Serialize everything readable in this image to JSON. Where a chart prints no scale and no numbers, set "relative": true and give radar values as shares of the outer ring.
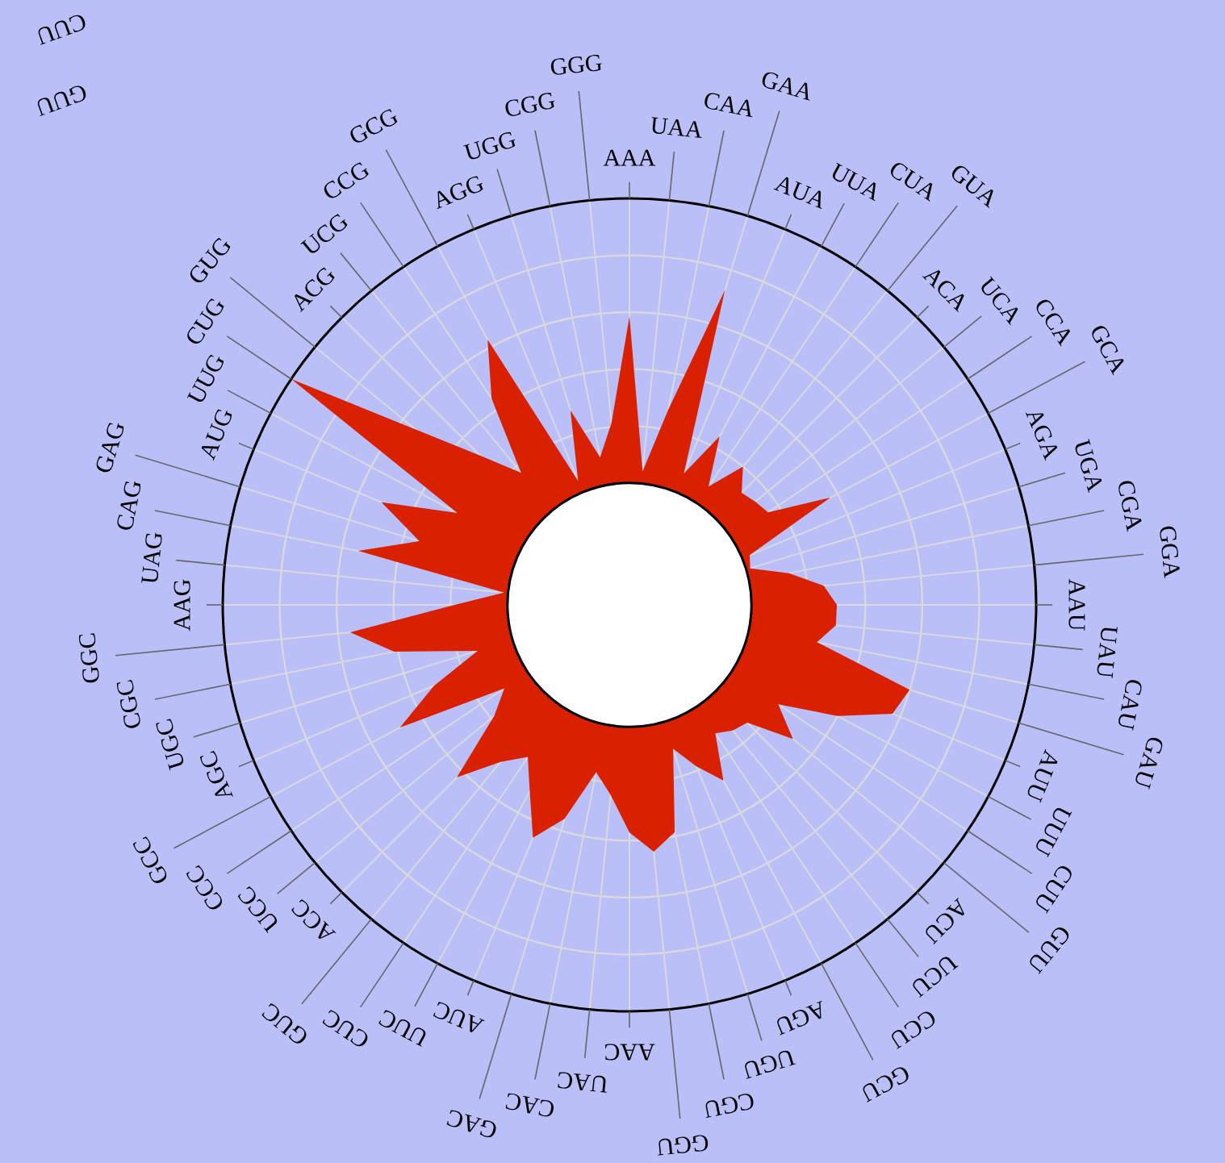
{
  "chart_data": {
    "type": "radar",
    "relative": true,
    "grid": true,
    "categories": [
      "AAA",
      "UAA",
      "CAA",
      "GAA",
      "AUA",
      "UUA",
      "CUA",
      "GUA",
      "ACA",
      "UCA",
      "CCA",
      "GCA",
      "AGA",
      "UGA",
      "CGA",
      "GGA",
      "AAU",
      "UAU",
      "CAU",
      "GAU",
      "AUU",
      "UUU",
      "CUU",
      "GUU",
      "ACU",
      "UCU",
      "CCU",
      "GCU",
      "AGU",
      "UGU",
      "CGU",
      "GGU",
      "AAC",
      "UAC",
      "CAC",
      "GAC",
      "AUC",
      "UUC",
      "CUC",
      "GUC",
      "ACC",
      "UCC",
      "CCC",
      "GCC",
      "AGC",
      "UGC",
      "CGC",
      "GGC",
      "AAG",
      "UAG",
      "CAG",
      "GAG",
      "AUG",
      "UUG",
      "CUG",
      "GUG",
      "ACG",
      "UCG",
      "CCG",
      "GCG",
      "AGG",
      "UGG",
      "CGG",
      "GGG"
    ],
    "series": [
      {
        "color": "#d92000",
        "values": [
          0.71,
          0.33,
          0.49,
          0.81,
          0.35,
          0.47,
          0.35,
          0.44,
          0.39,
          0.4,
          0.41,
          0.56,
          0.32,
          0.31,
          0.4,
          0.48,
          0.51,
          0.51,
          0.47,
          0.72,
          0.7,
          0.58,
          0.44,
          0.52,
          0.41,
          0.4,
          0.38,
          0.49,
          0.43,
          0.37,
          0.57,
          0.61,
          0.56,
          0.47,
          0.42,
          0.55,
          0.62,
          0.52,
          0.45,
          0.5,
          0.6,
          0.43,
          0.37,
          0.64,
          0.52,
          0.39,
          0.59,
          0.69,
          0.43,
          0.31,
          0.68,
          0.54,
          0.66,
          0.48,
          1.0,
          0.68,
          0.52,
          0.42,
          0.61,
          0.74,
          0.33,
          0.5,
          0.37,
          0.45
        ]
      }
    ],
    "annotations": [
      "CUU",
      "GUU"
    ]
  }
}
